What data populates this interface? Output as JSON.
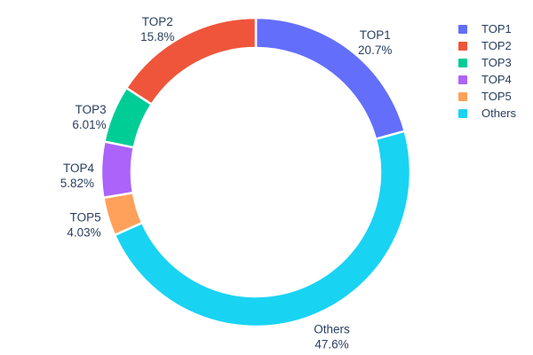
{
  "figure": {
    "background": "#ffffff",
    "text_color": "#2a3f5f"
  },
  "chart_data": {
    "type": "pie",
    "subtype": "donut",
    "title": "",
    "hole": 0.8,
    "labels_outside": true,
    "categories": [
      "TOP1",
      "TOP2",
      "TOP3",
      "TOP4",
      "TOP5",
      "Others"
    ],
    "values_percent": [
      20.7,
      15.8,
      6.01,
      5.82,
      4.03,
      47.6
    ],
    "percent_labels": [
      "20.7%",
      "15.8%",
      "6.01%",
      "5.82%",
      "4.03%",
      "47.6%"
    ],
    "colors": [
      "#636efa",
      "#ef553b",
      "#00cc96",
      "#ab63fa",
      "#ffa15a",
      "#19d3f3"
    ],
    "start_angle_deg": 0,
    "clockwise_draw_order": [
      0,
      5,
      4,
      3,
      2,
      1
    ],
    "separator_color": "#ffffff",
    "legend": {
      "position": "right",
      "items": [
        "TOP1",
        "TOP2",
        "TOP3",
        "TOP4",
        "TOP5",
        "Others"
      ]
    }
  }
}
